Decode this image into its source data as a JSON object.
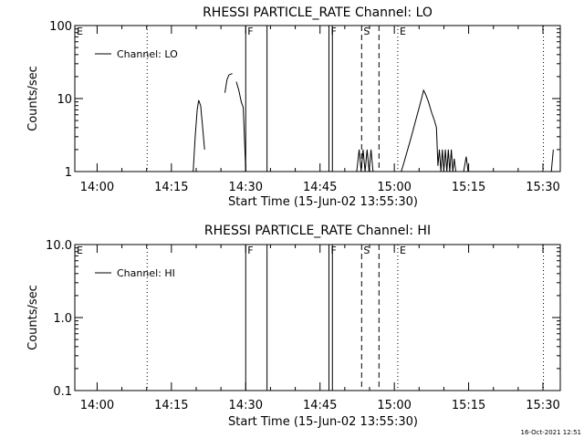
{
  "footer_timestamp": "16-Oct-2021 12:51",
  "chart_data": [
    {
      "type": "line",
      "title": "RHESSI PARTICLE_RATE Channel: LO",
      "xlabel": "Start Time (15-Jun-02 13:55:30)",
      "ylabel": "Counts/sec",
      "x_unit": "minutes since 13:55:30",
      "xlim": [
        0,
        98
      ],
      "ylim": [
        1,
        100
      ],
      "y_scale": "log",
      "x_ticks": [
        {
          "label": "14:00",
          "x": 4.5
        },
        {
          "label": "14:15",
          "x": 19.5
        },
        {
          "label": "14:30",
          "x": 34.5
        },
        {
          "label": "14:45",
          "x": 49.5
        },
        {
          "label": "15:00",
          "x": 64.5
        },
        {
          "label": "15:15",
          "x": 79.5
        },
        {
          "label": "15:30",
          "x": 94.5
        }
      ],
      "y_ticks": [
        {
          "label": "1",
          "y": 1
        },
        {
          "label": "10",
          "y": 10
        },
        {
          "label": "100",
          "y": 100
        }
      ],
      "legend": {
        "label": "Channel: LO",
        "placement": "top-left"
      },
      "markers": [
        {
          "label": "E",
          "x": 0,
          "style": "none"
        },
        {
          "label": "",
          "x": 14.6,
          "style": "dotted"
        },
        {
          "label": "F",
          "x": 34.5,
          "style": "solid"
        },
        {
          "label": "",
          "x": 38.8,
          "style": "solid"
        },
        {
          "label": "F",
          "x": 51.3,
          "style": "solid"
        },
        {
          "label": "",
          "x": 52.0,
          "style": "solid"
        },
        {
          "label": "S",
          "x": 57.9,
          "style": "dashed"
        },
        {
          "label": "",
          "x": 61.4,
          "style": "dashed"
        },
        {
          "label": "E",
          "x": 65.2,
          "style": "dotted"
        },
        {
          "label": "",
          "x": 94.6,
          "style": "dotted"
        }
      ],
      "series": [
        {
          "name": "Channel: LO",
          "segments": [
            [
              [
                23.9,
                1
              ],
              [
                24.3,
                3
              ],
              [
                24.7,
                7
              ],
              [
                25.0,
                9.5
              ],
              [
                25.4,
                8
              ],
              [
                25.8,
                4
              ],
              [
                26.2,
                2
              ]
            ],
            [
              [
                30.3,
                12
              ],
              [
                30.7,
                18
              ],
              [
                31.1,
                21
              ],
              [
                31.8,
                22
              ]
            ],
            [
              [
                32.6,
                17
              ],
              [
                33.1,
                13
              ],
              [
                33.6,
                9
              ],
              [
                34.0,
                7.5
              ],
              [
                34.5,
                1
              ]
            ],
            [
              [
                56.9,
                1
              ],
              [
                57.4,
                2
              ],
              [
                57.8,
                1
              ],
              [
                58.2,
                2
              ],
              [
                58.6,
                1
              ],
              [
                59.0,
                2
              ],
              [
                59.4,
                1
              ],
              [
                59.8,
                2
              ],
              [
                60.2,
                1
              ]
            ],
            [
              [
                65.9,
                1
              ],
              [
                66.4,
                1.3
              ],
              [
                67.0,
                1.8
              ],
              [
                67.6,
                2.5
              ],
              [
                68.2,
                3.5
              ],
              [
                68.8,
                5
              ],
              [
                69.4,
                7
              ],
              [
                70.0,
                10
              ],
              [
                70.4,
                13
              ],
              [
                70.8,
                11.5
              ],
              [
                71.4,
                9
              ],
              [
                72.0,
                6.5
              ],
              [
                72.6,
                5
              ],
              [
                73.0,
                4
              ],
              [
                73.3,
                1.2
              ],
              [
                73.6,
                2
              ],
              [
                73.9,
                1
              ],
              [
                74.2,
                2
              ],
              [
                74.5,
                1
              ],
              [
                74.8,
                2
              ],
              [
                75.1,
                1
              ],
              [
                75.4,
                2
              ],
              [
                75.7,
                1
              ],
              [
                76.0,
                2
              ],
              [
                76.3,
                1
              ],
              [
                76.6,
                1.5
              ],
              [
                76.9,
                1
              ]
            ],
            [
              [
                78.5,
                1
              ],
              [
                79.0,
                1.6
              ],
              [
                79.4,
                1
              ]
            ],
            [
              [
                96.2,
                1
              ],
              [
                96.6,
                2
              ]
            ]
          ]
        }
      ]
    },
    {
      "type": "line",
      "title": "RHESSI PARTICLE_RATE Channel: HI",
      "xlabel": "Start Time (15-Jun-02 13:55:30)",
      "ylabel": "Counts/sec",
      "x_unit": "minutes since 13:55:30",
      "xlim": [
        0,
        98
      ],
      "ylim": [
        0.1,
        10
      ],
      "y_scale": "log",
      "x_ticks": [
        {
          "label": "14:00",
          "x": 4.5
        },
        {
          "label": "14:15",
          "x": 19.5
        },
        {
          "label": "14:30",
          "x": 34.5
        },
        {
          "label": "14:45",
          "x": 49.5
        },
        {
          "label": "15:00",
          "x": 64.5
        },
        {
          "label": "15:15",
          "x": 79.5
        },
        {
          "label": "15:30",
          "x": 94.5
        }
      ],
      "y_ticks": [
        {
          "label": "0.1",
          "y": 0.1
        },
        {
          "label": "1.0",
          "y": 1
        },
        {
          "label": "10.0",
          "y": 10
        }
      ],
      "legend": {
        "label": "Channel: HI",
        "placement": "top-left"
      },
      "markers": [
        {
          "label": "E",
          "x": 0,
          "style": "none"
        },
        {
          "label": "",
          "x": 14.6,
          "style": "dotted"
        },
        {
          "label": "F",
          "x": 34.5,
          "style": "solid"
        },
        {
          "label": "",
          "x": 38.8,
          "style": "solid"
        },
        {
          "label": "F",
          "x": 51.3,
          "style": "solid"
        },
        {
          "label": "",
          "x": 52.0,
          "style": "solid"
        },
        {
          "label": "S",
          "x": 57.9,
          "style": "dashed"
        },
        {
          "label": "",
          "x": 61.4,
          "style": "dashed"
        },
        {
          "label": "E",
          "x": 65.2,
          "style": "dotted"
        },
        {
          "label": "",
          "x": 94.6,
          "style": "dotted"
        }
      ],
      "series": [
        {
          "name": "Channel: HI",
          "segments": []
        }
      ]
    }
  ]
}
